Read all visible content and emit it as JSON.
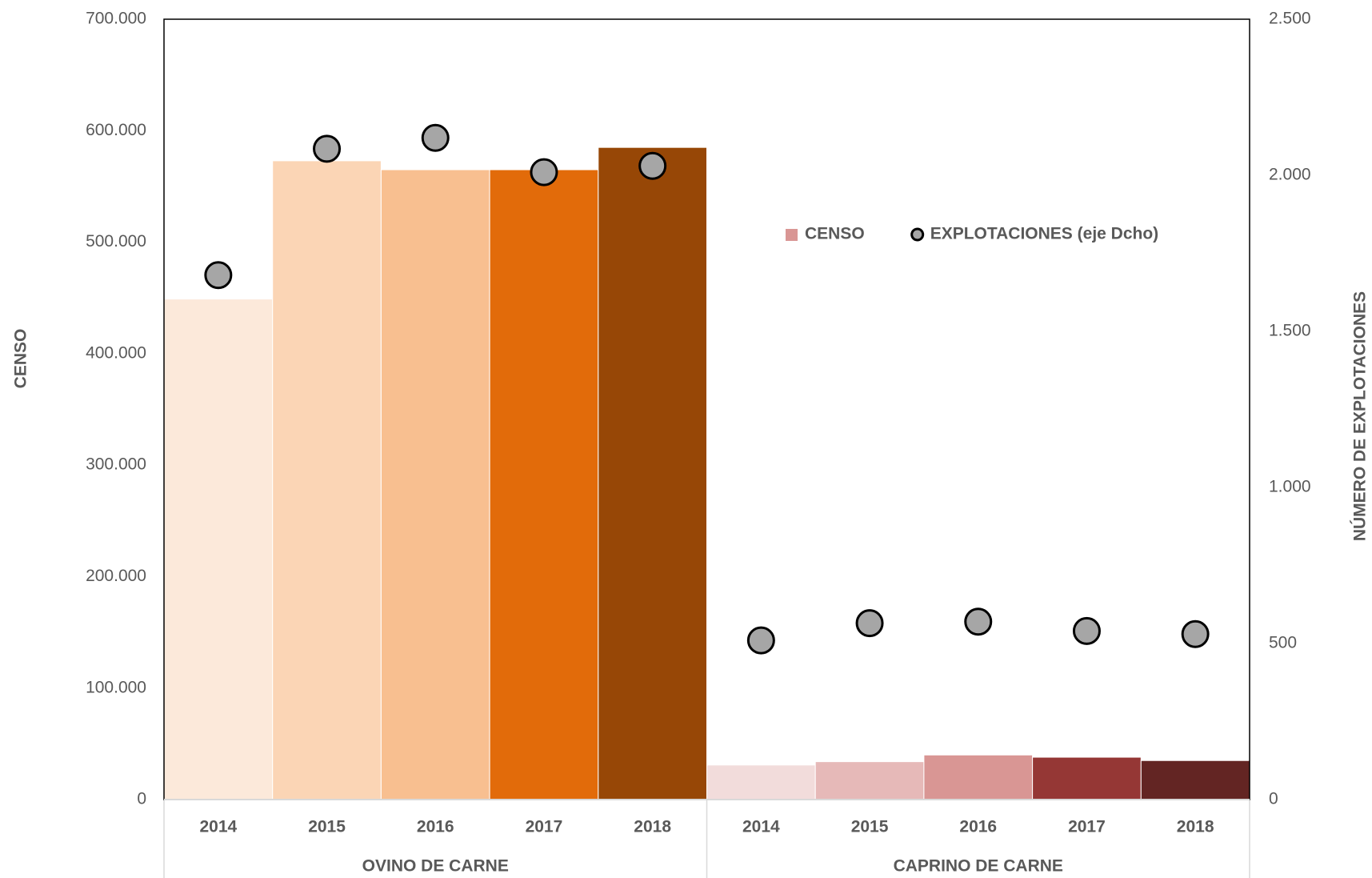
{
  "chart_data": {
    "type": "bar",
    "groups": [
      {
        "label": "OVINO DE CARNE",
        "categories": [
          "2014",
          "2015",
          "2016",
          "2017",
          "2018"
        ]
      },
      {
        "label": "CAPRINO DE CARNE",
        "categories": [
          "2014",
          "2015",
          "2016",
          "2017",
          "2018"
        ]
      }
    ],
    "series": [
      {
        "name": "CENSO",
        "type": "bar",
        "color": "#d99694",
        "colors": [
          "#fce9da",
          "#fbd5b5",
          "#f8bf90",
          "#e26b0a",
          "#974706",
          "#f2dcdb",
          "#e6b9b8",
          "#d99694",
          "#953735",
          "#632523"
        ],
        "values": [
          449000,
          573000,
          565000,
          565000,
          585000,
          31000,
          34000,
          40000,
          38000,
          35000
        ]
      },
      {
        "name": "EXPLOTACIONES (eje Dcho)",
        "type": "scatter",
        "axis": "y2",
        "color": "#a6a6a6",
        "values": [
          1680,
          2085,
          2120,
          2010,
          2030,
          510,
          565,
          570,
          540,
          530
        ]
      }
    ],
    "y_label": "CENSO",
    "y2_label": "NÚMERO DE EXPLOTACIONES",
    "ylim": [
      0,
      700000
    ],
    "yticks": [
      0,
      {
        "value": 100000,
        "label": "100.000"
      },
      {
        "value": 200000,
        "label": "200.000"
      },
      {
        "value": 300000,
        "label": "300.000"
      },
      {
        "value": 400000,
        "label": "400.000"
      },
      {
        "value": 500000,
        "label": "500.000"
      },
      {
        "value": 600000,
        "label": "600.000"
      },
      {
        "value": 700000,
        "label": "700.000"
      }
    ],
    "y2lim": [
      0,
      2500
    ],
    "y2ticks": [
      0,
      500,
      {
        "value": 1000,
        "label": "1.000"
      },
      {
        "value": 1500,
        "label": "1.500"
      },
      {
        "value": 2000,
        "label": "2.000"
      },
      {
        "value": 2500,
        "label": "2.500"
      }
    ],
    "legend": "upper right",
    "grid": false
  }
}
